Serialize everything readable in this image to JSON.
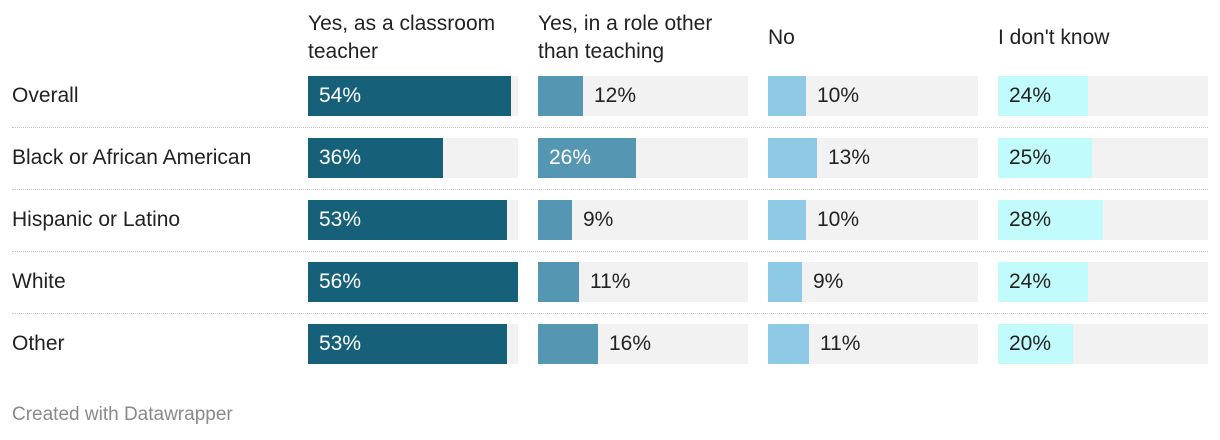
{
  "columns": [
    {
      "label": "Yes, as a classroom teacher",
      "color": "#17607a",
      "value_color": "#ffffff"
    },
    {
      "label": "Yes, in a role other than teaching",
      "color": "#5596b3",
      "value_color": "#222222"
    },
    {
      "label": "No",
      "color": "#8ec9e6",
      "value_color": "#222222"
    },
    {
      "label": "I don't know",
      "color": "#c2fbfc",
      "value_color": "#222222"
    }
  ],
  "chart_data": {
    "type": "bar",
    "categories": [
      "Overall",
      "Black or African American",
      "Hispanic or Latino",
      "White",
      "Other"
    ],
    "series": [
      {
        "name": "Yes, as a classroom teacher",
        "values": [
          54,
          36,
          53,
          56,
          53
        ]
      },
      {
        "name": "Yes, in a role other than teaching",
        "values": [
          12,
          26,
          9,
          11,
          16
        ]
      },
      {
        "name": "No",
        "values": [
          10,
          13,
          10,
          9,
          11
        ]
      },
      {
        "name": "I don't know",
        "values": [
          24,
          25,
          28,
          24,
          20
        ]
      }
    ],
    "unit": "%",
    "xlim": [
      0,
      56
    ]
  },
  "footer": "Created with Datawrapper"
}
